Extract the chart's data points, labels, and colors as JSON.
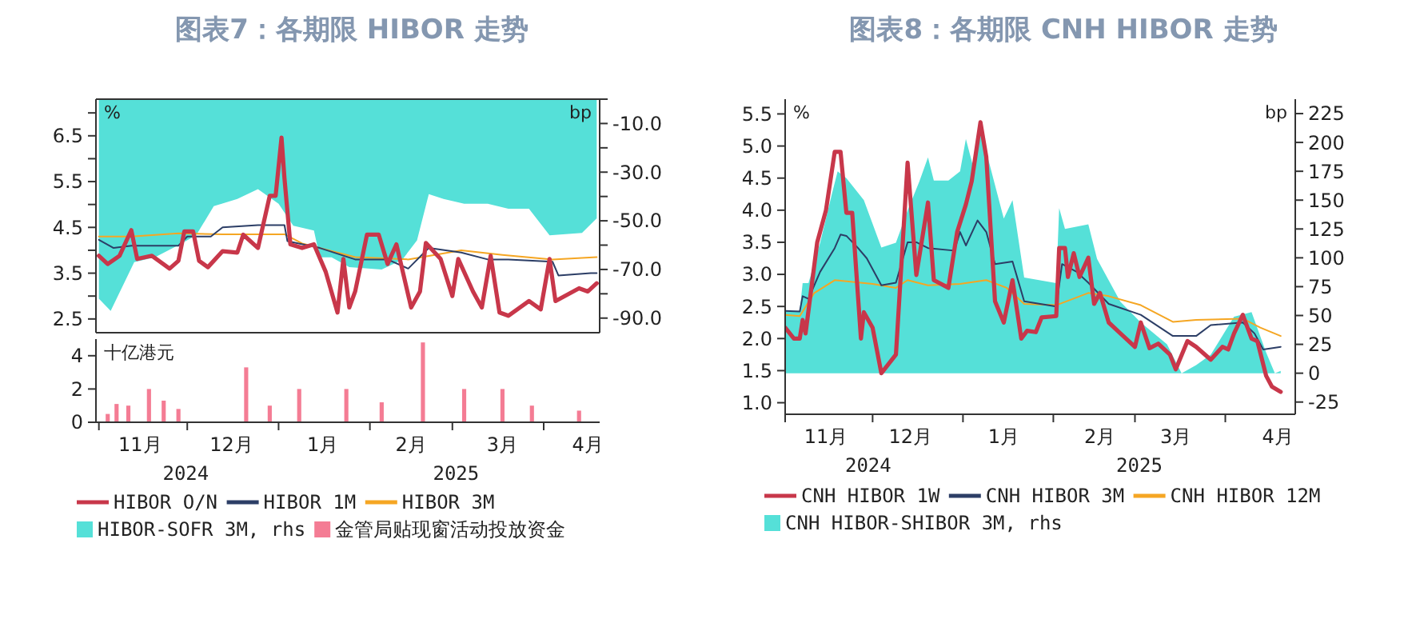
{
  "chart_data": [
    {
      "type": "line",
      "title": "图表7：各期限 HIBOR 走势",
      "ylabel": "%",
      "y2label": "bp",
      "xlim": [
        "2024-10-31",
        "2025-04-20"
      ],
      "ylim": [
        2.2,
        7.3
      ],
      "yticks": [
        2.5,
        {
          "value": 3,
          "label": null
        },
        3.5,
        {
          "value": 4,
          "label": null
        },
        4.5,
        {
          "value": 5,
          "label": null
        },
        5.5,
        {
          "value": 6,
          "label": null
        },
        6.5,
        {
          "value": 7,
          "label": null
        }
      ],
      "y2lim": [
        -96,
        0
      ],
      "y2ticks": [
        {
          "value": 0,
          "label": null
        },
        {
          "value": -10,
          "label": "-10.0"
        },
        {
          "value": -20,
          "label": null
        },
        {
          "value": -30,
          "label": "-30.0"
        },
        {
          "value": -40,
          "label": null
        },
        {
          "value": -50,
          "label": "-50.0"
        },
        {
          "value": -60,
          "label": null
        },
        {
          "value": -70,
          "label": "-70.0"
        },
        {
          "value": -80,
          "label": null
        },
        {
          "value": -90,
          "label": "-90.0"
        }
      ],
      "tick_labels": "y",
      "legend": "bottom",
      "series": [
        {
          "name": "HIBOR O/N",
          "color": "#c8374a",
          "x": [
            "2024-11-01",
            "2024-11-04",
            "2024-11-08",
            "2024-11-12",
            "2024-11-14",
            "2024-11-19",
            "2024-11-25",
            "2024-11-28",
            "2024-11-30",
            "2024-12-03",
            "2024-12-05",
            "2024-12-08",
            "2024-12-13",
            "2024-12-18",
            "2024-12-20",
            "2024-12-25",
            "2024-12-29",
            "2024-12-31",
            "2025-01-02",
            "2025-01-03",
            "2025-01-05",
            "2025-01-09",
            "2025-01-13",
            "2025-01-17",
            "2025-01-21",
            "2025-01-23",
            "2025-01-25",
            "2025-01-27",
            "2025-01-31",
            "2025-02-04",
            "2025-02-07",
            "2025-02-10",
            "2025-02-15",
            "2025-02-18",
            "2025-02-20",
            "2025-02-25",
            "2025-03-01",
            "2025-03-03",
            "2025-03-08",
            "2025-03-11",
            "2025-03-14",
            "2025-03-17",
            "2025-03-20",
            "2025-03-27",
            "2025-03-31",
            "2025-04-03",
            "2025-04-05",
            "2025-04-13",
            "2025-04-16",
            "2025-04-19"
          ],
          "values": [
            3.88,
            3.7,
            3.88,
            4.44,
            3.81,
            3.88,
            3.6,
            3.77,
            4.41,
            4.41,
            3.77,
            3.63,
            3.98,
            3.95,
            4.34,
            4.05,
            5.19,
            5.19,
            6.46,
            5.57,
            4.13,
            4.05,
            4.13,
            3.53,
            2.64,
            3.81,
            2.75,
            3.1,
            4.34,
            4.34,
            3.7,
            4.13,
            2.75,
            3.1,
            4.16,
            3.81,
            3.0,
            3.81,
            3.1,
            2.75,
            3.88,
            2.64,
            2.57,
            2.89,
            2.71,
            3.81,
            2.89,
            3.17,
            3.1,
            3.28
          ]
        },
        {
          "name": "HIBOR 1M",
          "color": "#2c3e66",
          "x": [
            "2024-11-01",
            "2024-11-06",
            "2024-11-12",
            "2024-11-28",
            "2024-12-01",
            "2024-12-09",
            "2024-12-13",
            "2024-12-25",
            "2025-01-03",
            "2025-01-04",
            "2025-01-15",
            "2025-01-27",
            "2025-02-07",
            "2025-02-14",
            "2025-02-21",
            "2025-03-04",
            "2025-03-13",
            "2025-03-20",
            "2025-04-04",
            "2025-04-06",
            "2025-04-17",
            "2025-04-19"
          ],
          "values": [
            4.23,
            4.05,
            4.1,
            4.1,
            4.3,
            4.3,
            4.5,
            4.55,
            4.55,
            4.2,
            4.05,
            3.8,
            3.8,
            3.6,
            4.05,
            3.95,
            3.8,
            3.8,
            3.75,
            3.45,
            3.5,
            3.5
          ]
        },
        {
          "name": "HIBOR 3M",
          "color": "#f5a623",
          "x": [
            "2024-11-01",
            "2024-11-12",
            "2024-11-28",
            "2024-12-13",
            "2025-01-03",
            "2025-01-09",
            "2025-01-27",
            "2025-02-14",
            "2025-03-04",
            "2025-03-18",
            "2025-04-04",
            "2025-04-19"
          ],
          "values": [
            4.3,
            4.3,
            4.37,
            4.35,
            4.35,
            4.15,
            3.85,
            3.8,
            4.0,
            3.9,
            3.8,
            3.85
          ]
        },
        {
          "name": "HIBOR-SOFR 3M, rhs",
          "type": "area",
          "axis": "y2",
          "color": "#55e0d8",
          "x": [
            "2024-11-01",
            "2024-11-05",
            "2024-11-07",
            "2024-11-13",
            "2024-11-20",
            "2024-11-28",
            "2024-12-04",
            "2024-12-10",
            "2024-12-18",
            "2024-12-25",
            "2025-01-01",
            "2025-01-06",
            "2025-01-13",
            "2025-01-15",
            "2025-01-19",
            "2025-01-25",
            "2025-02-05",
            "2025-02-12",
            "2025-02-17",
            "2025-02-21",
            "2025-02-26",
            "2025-03-05",
            "2025-03-13",
            "2025-03-20",
            "2025-03-27",
            "2025-04-03",
            "2025-04-14",
            "2025-04-19"
          ],
          "values": [
            -82,
            -87,
            -82,
            -67,
            -65,
            -60,
            -56,
            -44,
            -41,
            -37,
            -43,
            -52,
            -54,
            -65,
            -65,
            -69,
            -70,
            -66,
            -58,
            -39,
            -41,
            -43,
            -43,
            -45,
            -45,
            -56,
            -55,
            -49
          ]
        }
      ]
    },
    {
      "type": "bar",
      "ylabel": "十亿港元",
      "xlim": [
        "2024-10-31",
        "2025-04-20"
      ],
      "ylim": [
        0,
        5
      ],
      "yticks": [
        0,
        2,
        4
      ],
      "xticks": [
        {
          "value": "2024-11-01",
          "label": null
        },
        {
          "value": "2024-11-15",
          "label": "11月"
        },
        {
          "value": "2024-12-01",
          "label": null
        },
        {
          "value": "2024-12-16",
          "label": "12月"
        },
        {
          "value": "2025-01-01",
          "label": null
        },
        {
          "value": "2025-01-16",
          "label": "1月"
        },
        {
          "value": "2025-02-01",
          "label": null
        },
        {
          "value": "2025-02-15",
          "label": "2月"
        },
        {
          "value": "2025-03-01",
          "label": null
        },
        {
          "value": "2025-03-18",
          "label": "3月"
        },
        {
          "value": "2025-04-01",
          "label": null
        },
        {
          "value": "2025-04-16",
          "label": "4月"
        }
      ],
      "annotations": [
        "2024",
        "2025"
      ],
      "legend": "bottom",
      "series": [
        {
          "name": "金管局贴现窗活动投放资金",
          "color": "#f47c94",
          "x": [
            "2024-11-04",
            "2024-11-07",
            "2024-11-11",
            "2024-11-18",
            "2024-11-23",
            "2024-11-28",
            "2024-12-21",
            "2024-12-29",
            "2025-01-08",
            "2025-01-24",
            "2025-02-05",
            "2025-02-19",
            "2025-03-05",
            "2025-03-18",
            "2025-03-28",
            "2025-04-13"
          ],
          "values": [
            0.5,
            1.1,
            1.0,
            2.0,
            1.3,
            0.8,
            3.3,
            1.0,
            2.0,
            2.0,
            1.2,
            4.8,
            2.0,
            2.0,
            1.0,
            0.7
          ]
        }
      ]
    },
    {
      "type": "line",
      "title": "图表8：各期限 CNH HIBOR 走势",
      "ylabel": "%",
      "y2label": "bp",
      "xlim": [
        "2024-11-01",
        "2025-04-25"
      ],
      "ylim": [
        0.82,
        5.73
      ],
      "yticks": [
        {
          "value": 1,
          "label": "1.0"
        },
        1.5,
        {
          "value": 2,
          "label": "2.0"
        },
        2.5,
        {
          "value": 3,
          "label": "3.0"
        },
        3.5,
        {
          "value": 4,
          "label": "4.0"
        },
        4.5,
        {
          "value": 5,
          "label": "5.0"
        },
        5.5
      ],
      "y2lim": [
        -35.6,
        237.5
      ],
      "y2ticks": [
        -25,
        0,
        25,
        50,
        75,
        100,
        125,
        150,
        175,
        200,
        225
      ],
      "xticks": [
        {
          "value": "2024-11-01",
          "label": null
        },
        {
          "value": "2024-11-15",
          "label": "11月"
        },
        {
          "value": "2024-12-01",
          "label": null
        },
        {
          "value": "2024-12-14",
          "label": "12月"
        },
        {
          "value": "2025-01-01",
          "label": null
        },
        {
          "value": "2025-01-15",
          "label": "1月"
        },
        {
          "value": "2025-02-01",
          "label": null
        },
        {
          "value": "2025-02-17",
          "label": "2月"
        },
        {
          "value": "2025-03-01",
          "label": null
        },
        {
          "value": "2025-03-15",
          "label": "3月"
        },
        {
          "value": "2025-04-01",
          "label": null
        },
        {
          "value": "2025-04-19",
          "label": "4月"
        }
      ],
      "annotations": [
        "2024",
        "2025"
      ],
      "legend": "bottom",
      "series": [
        {
          "name": "CNH HIBOR 1W",
          "color": "#c8374a",
          "x": [
            "2024-11-01",
            "2024-11-04",
            "2024-11-06",
            "2024-11-07",
            "2024-11-08",
            "2024-11-12",
            "2024-11-15",
            "2024-11-18",
            "2024-11-20",
            "2024-11-22",
            "2024-11-24",
            "2024-11-27",
            "2024-11-28",
            "2024-12-01",
            "2024-12-04",
            "2024-12-09",
            "2024-12-13",
            "2024-12-16",
            "2024-12-20",
            "2024-12-22",
            "2024-12-27",
            "2024-12-30",
            "2025-01-02",
            "2025-01-04",
            "2025-01-07",
            "2025-01-09",
            "2025-01-12",
            "2025-01-15",
            "2025-01-18",
            "2025-01-21",
            "2025-01-23",
            "2025-01-26",
            "2025-01-28",
            "2025-02-02",
            "2025-02-03",
            "2025-02-05",
            "2025-02-06",
            "2025-02-08",
            "2025-02-10",
            "2025-02-13",
            "2025-02-15",
            "2025-02-17",
            "2025-02-20",
            "2025-02-24",
            "2025-03-01",
            "2025-03-03",
            "2025-03-06",
            "2025-03-09",
            "2025-03-13",
            "2025-03-15",
            "2025-03-19",
            "2025-03-22",
            "2025-03-27",
            "2025-03-31",
            "2025-04-02",
            "2025-04-04",
            "2025-04-07",
            "2025-04-10",
            "2025-04-12",
            "2025-04-15",
            "2025-04-17",
            "2025-04-20"
          ],
          "values": [
            2.17,
            2.0,
            2.0,
            2.29,
            2.08,
            3.5,
            4.0,
            4.91,
            4.91,
            3.96,
            3.96,
            2.0,
            2.41,
            2.17,
            1.46,
            1.75,
            4.74,
            2.99,
            4.12,
            2.91,
            2.79,
            3.66,
            4.09,
            4.45,
            5.37,
            4.83,
            2.58,
            2.25,
            2.91,
            2.0,
            2.12,
            2.1,
            2.33,
            2.35,
            3.41,
            3.41,
            2.96,
            3.33,
            2.96,
            3.26,
            2.54,
            2.71,
            2.25,
            2.08,
            1.87,
            2.25,
            1.85,
            1.92,
            1.75,
            1.52,
            1.96,
            1.87,
            1.67,
            1.87,
            1.83,
            2.08,
            2.37,
            2.0,
            1.96,
            1.42,
            1.25,
            1.17
          ]
        },
        {
          "name": "CNH HIBOR 3M",
          "color": "#2c3e66",
          "x": [
            "2024-11-01",
            "2024-11-06",
            "2024-11-07",
            "2024-11-09",
            "2024-11-13",
            "2024-11-18",
            "2024-11-20",
            "2024-11-22",
            "2024-11-26",
            "2024-11-29",
            "2024-12-04",
            "2024-12-09",
            "2024-12-13",
            "2024-12-16",
            "2024-12-20",
            "2024-12-29",
            "2024-12-31",
            "2025-01-02",
            "2025-01-06",
            "2025-01-09",
            "2025-01-12",
            "2025-01-18",
            "2025-01-22",
            "2025-02-02",
            "2025-02-04",
            "2025-02-09",
            "2025-02-13",
            "2025-02-20",
            "2025-03-03",
            "2025-03-14",
            "2025-03-22",
            "2025-03-27",
            "2025-04-07",
            "2025-04-11",
            "2025-04-14",
            "2025-04-20"
          ],
          "values": [
            2.43,
            2.42,
            2.66,
            2.62,
            3.04,
            3.41,
            3.62,
            3.6,
            3.41,
            3.25,
            2.83,
            2.87,
            3.5,
            3.5,
            3.41,
            3.37,
            3.66,
            3.45,
            3.84,
            3.66,
            3.16,
            3.2,
            2.58,
            2.5,
            3.16,
            3.04,
            2.87,
            2.54,
            2.37,
            2.04,
            2.04,
            2.21,
            2.25,
            2.08,
            1.83,
            1.87
          ]
        },
        {
          "name": "CNH HIBOR 12M",
          "color": "#f5a623",
          "x": [
            "2024-11-01",
            "2024-11-06",
            "2024-11-11",
            "2024-11-18",
            "2024-12-01",
            "2024-12-09",
            "2024-12-13",
            "2024-12-20",
            "2024-12-31",
            "2025-01-09",
            "2025-01-16",
            "2025-01-22",
            "2025-02-02",
            "2025-02-13",
            "2025-02-20",
            "2025-03-03",
            "2025-03-14",
            "2025-03-22",
            "2025-04-07",
            "2025-04-13",
            "2025-04-20"
          ],
          "values": [
            2.37,
            2.35,
            2.71,
            2.91,
            2.85,
            2.79,
            2.91,
            2.83,
            2.85,
            2.91,
            2.79,
            2.54,
            2.52,
            2.71,
            2.66,
            2.52,
            2.26,
            2.29,
            2.31,
            2.17,
            2.04
          ]
        },
        {
          "name": "CNH HIBOR-SHIBOR 3M, rhs",
          "type": "area",
          "axis": "y2",
          "color": "#55e0d8",
          "x": [
            "2024-11-01",
            "2024-11-06",
            "2024-11-07",
            "2024-11-09",
            "2024-11-13",
            "2024-11-17",
            "2024-11-19",
            "2024-11-22",
            "2024-11-28",
            "2024-12-04",
            "2024-12-09",
            "2024-12-13",
            "2024-12-17",
            "2024-12-20",
            "2024-12-22",
            "2024-12-27",
            "2024-12-31",
            "2025-01-02",
            "2025-01-05",
            "2025-01-07",
            "2025-01-09",
            "2025-01-15",
            "2025-01-18",
            "2025-01-22",
            "2025-02-02",
            "2025-02-03",
            "2025-02-05",
            "2025-02-13",
            "2025-02-16",
            "2025-02-24",
            "2025-03-03",
            "2025-03-12",
            "2025-03-17",
            "2025-03-22",
            "2025-03-27",
            "2025-04-04",
            "2025-04-10",
            "2025-04-15",
            "2025-04-18",
            "2025-04-20"
          ],
          "values": [
            54,
            54,
            78,
            78,
            113,
            155,
            175,
            169,
            150,
            109,
            113,
            141,
            166,
            187,
            167,
            167,
            175,
            203,
            174,
            219,
            192,
            134,
            150,
            83,
            78,
            143,
            125,
            129,
            99,
            62,
            44,
            25,
            0,
            7,
            16,
            49,
            53,
            18,
            0,
            2
          ]
        }
      ]
    }
  ]
}
